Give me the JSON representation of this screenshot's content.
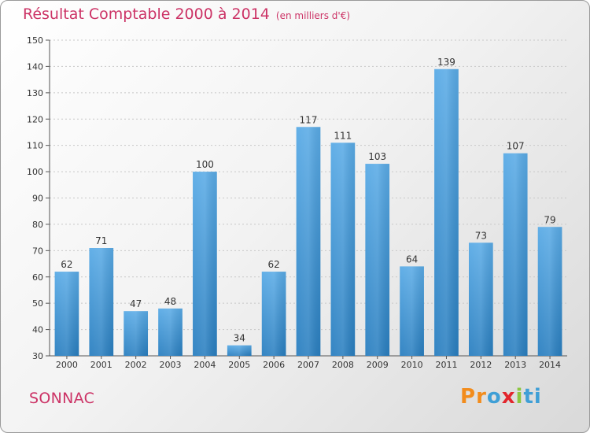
{
  "header": {
    "title": "Résultat Comptable 2000 à 2014",
    "unit": "(en milliers d'€)"
  },
  "footer": {
    "commune": "SONNAC",
    "logo_letters": [
      "P",
      "r",
      "o",
      "x",
      "i",
      "t",
      "i"
    ]
  },
  "colors": {
    "title": "#cc3366",
    "bar_light": "#5aabe6",
    "bar_dark": "#2a7fc0",
    "logo": [
      "#f28c1c",
      "#f28c1c",
      "#3f9fd6",
      "#e2262d",
      "#8cc63f",
      "#3f9fd6",
      "#3f9fd6"
    ]
  },
  "chart_data": {
    "type": "bar",
    "categories": [
      "2000",
      "2001",
      "2002",
      "2003",
      "2004",
      "2005",
      "2006",
      "2007",
      "2008",
      "2009",
      "2010",
      "2011",
      "2012",
      "2013",
      "2014"
    ],
    "values": [
      62,
      71,
      47,
      48,
      100,
      34,
      62,
      117,
      111,
      103,
      64,
      139,
      73,
      107,
      79
    ],
    "ylim": [
      30,
      150
    ],
    "yticks": [
      30,
      40,
      50,
      60,
      70,
      80,
      90,
      100,
      110,
      120,
      130,
      140,
      150
    ],
    "grid": true
  }
}
